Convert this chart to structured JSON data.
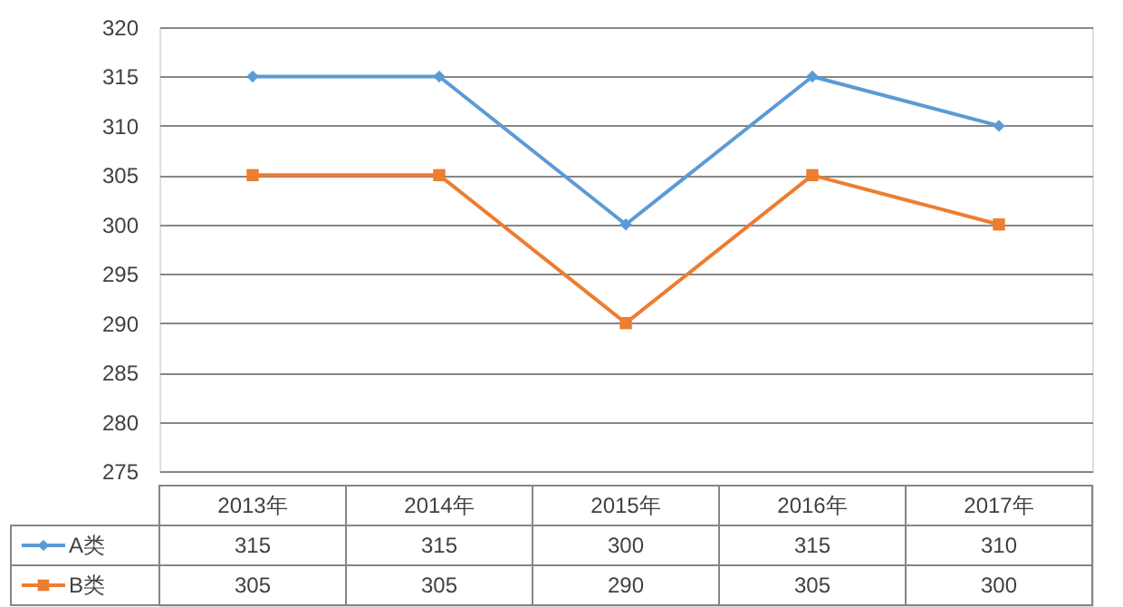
{
  "chart_data": {
    "type": "line",
    "categories": [
      "2013年",
      "2014年",
      "2015年",
      "2016年",
      "2017年"
    ],
    "series": [
      {
        "name": "A类",
        "color": "#5b9bd5",
        "marker": "diamond",
        "values": [
          315,
          315,
          300,
          315,
          310
        ]
      },
      {
        "name": "B类",
        "color": "#ed7d31",
        "marker": "square",
        "values": [
          305,
          305,
          290,
          305,
          300
        ]
      }
    ],
    "ylim": [
      275,
      320
    ],
    "yticks": [
      275,
      280,
      285,
      290,
      295,
      300,
      305,
      310,
      315,
      320
    ],
    "grid": "y",
    "data_labels": true,
    "legend": "bottom"
  }
}
